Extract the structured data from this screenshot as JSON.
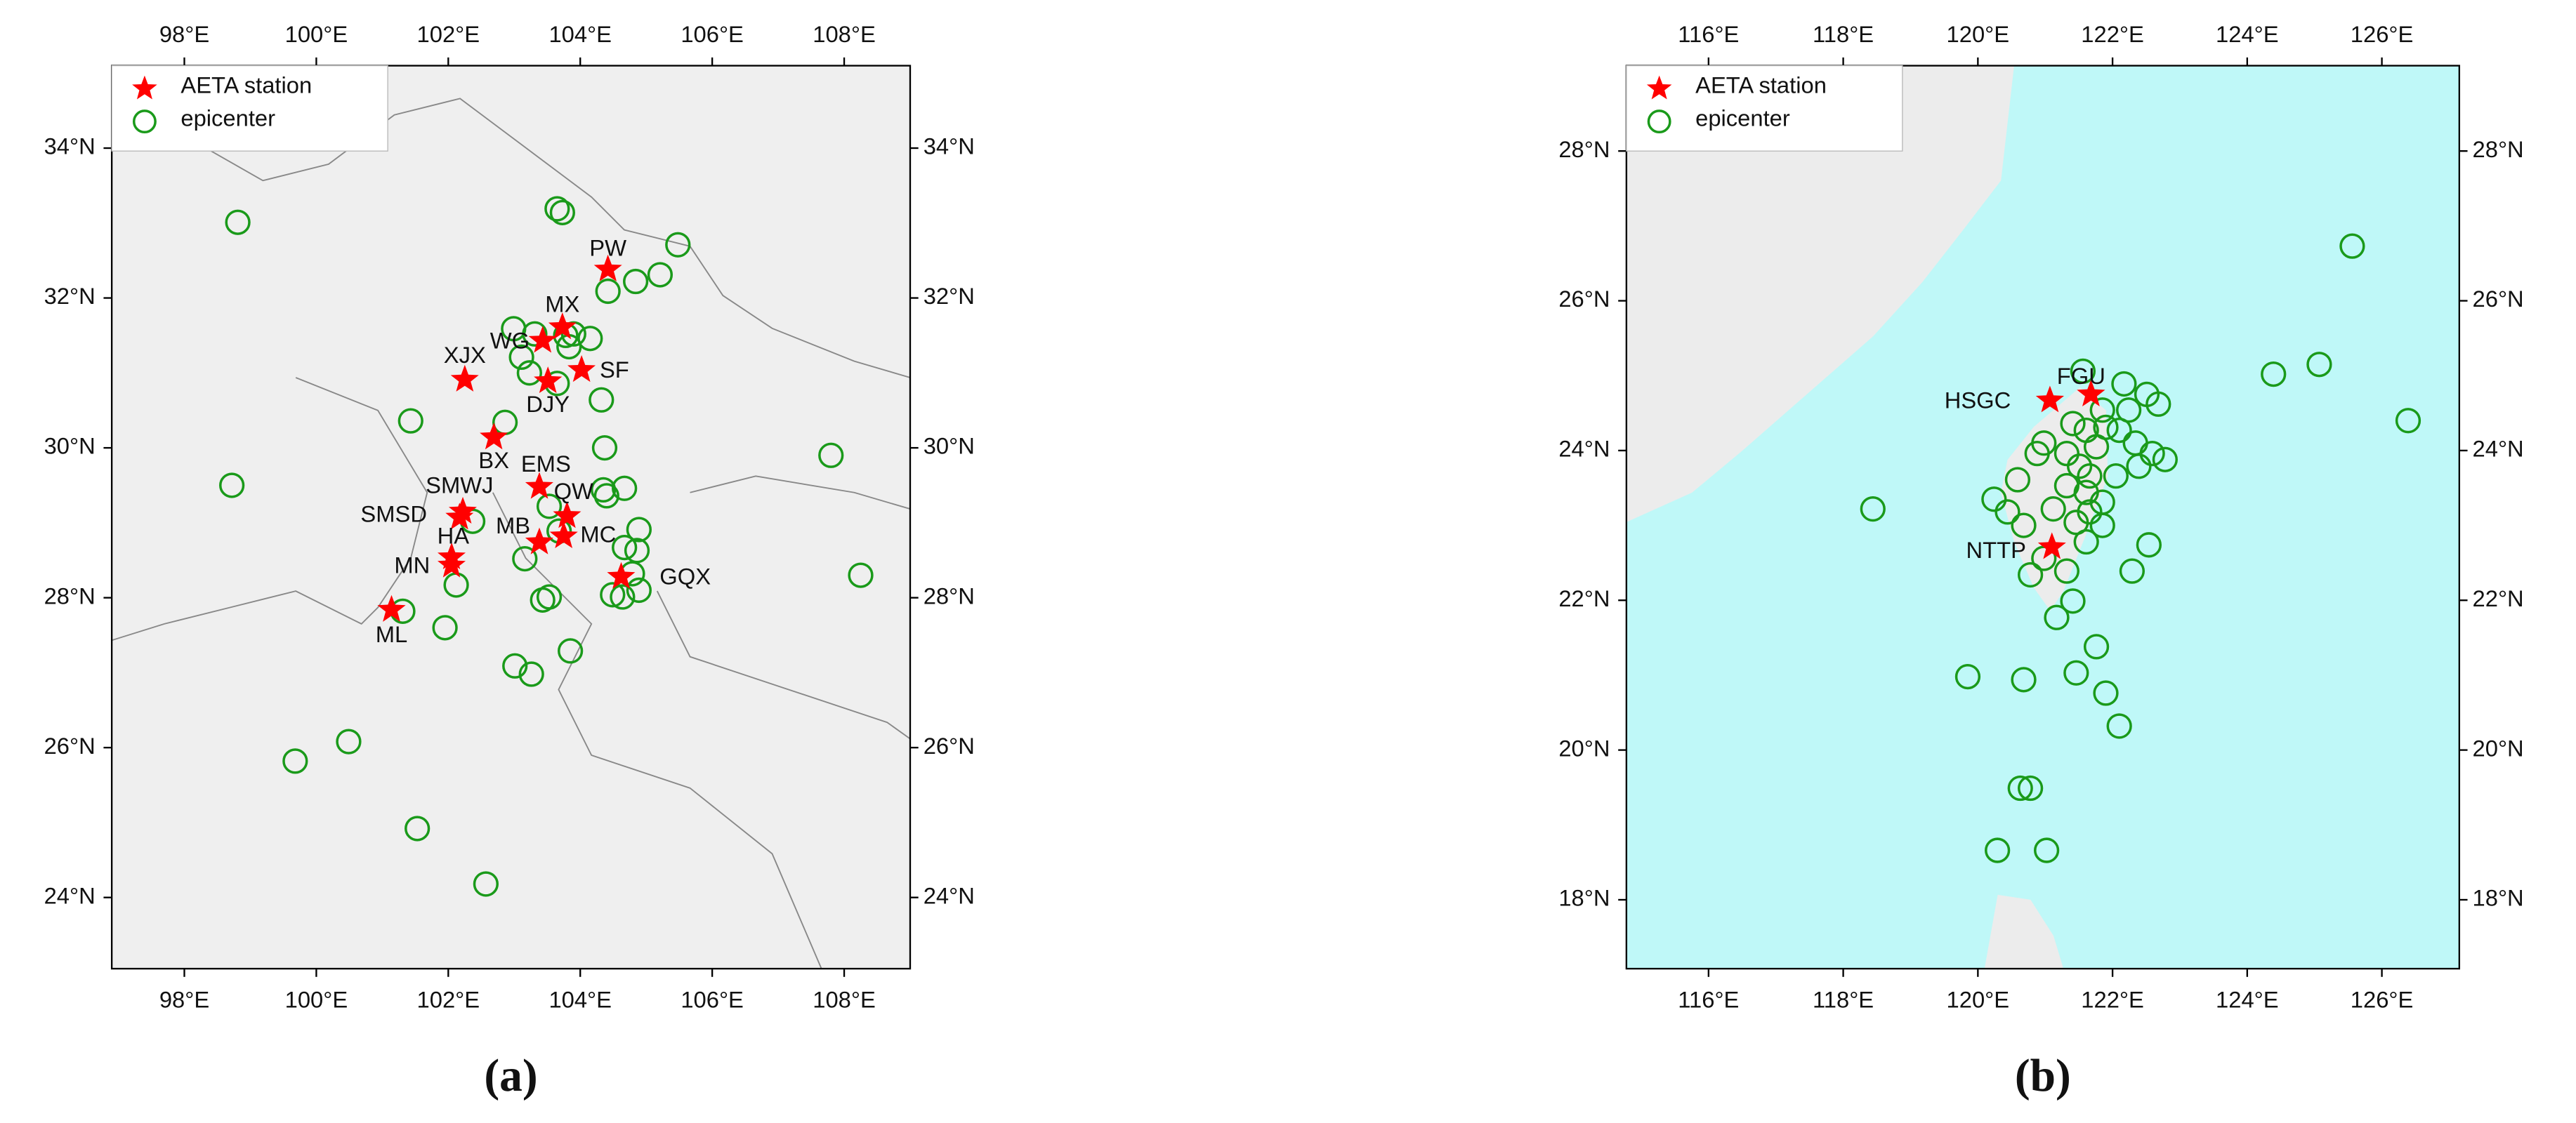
{
  "chart_data": [
    {
      "type": "scatter",
      "caption": "(a)",
      "background": "#efefef",
      "xlim": [
        96.9,
        109
      ],
      "ylim": [
        23.05,
        35.1
      ],
      "xticks": [
        {
          "value": 98,
          "label": "98°E"
        },
        {
          "value": 100,
          "label": "100°E"
        },
        {
          "value": 102,
          "label": "102°E"
        },
        {
          "value": 104,
          "label": "104°E"
        },
        {
          "value": 106,
          "label": "106°E"
        },
        {
          "value": 108,
          "label": "108°E"
        }
      ],
      "yticks": [
        {
          "value": 24,
          "label": "24°N"
        },
        {
          "value": 26,
          "label": "26°N"
        },
        {
          "value": 28,
          "label": "28°N"
        },
        {
          "value": 30,
          "label": "30°N"
        },
        {
          "value": 32,
          "label": "32°N"
        },
        {
          "value": 34,
          "label": "34°N"
        }
      ],
      "series": [
        {
          "name": "AETA station",
          "color": "#ff0000",
          "marker": "star",
          "labels": [
            "PW",
            "MX",
            "WG",
            "XJX",
            "SF",
            "DJY",
            "BX",
            "EMS",
            "SMWJ",
            "SMSD",
            "QW",
            "MB",
            "MC",
            "HA",
            "MN",
            "GQX",
            "ML"
          ],
          "x": [
            104.42,
            103.73,
            103.43,
            102.25,
            104.02,
            103.51,
            102.69,
            103.38,
            102.22,
            102.17,
            103.8,
            103.38,
            103.75,
            102.05,
            102.05,
            104.62,
            101.14
          ],
          "y": [
            32.38,
            31.61,
            31.43,
            30.91,
            31.04,
            30.89,
            30.14,
            29.48,
            29.15,
            29.07,
            29.09,
            28.74,
            28.82,
            28.54,
            28.43,
            28.28,
            27.84
          ]
        },
        {
          "name": "epicenter",
          "color": "#1a9a1a",
          "marker": "circle",
          "x": [
            98.81,
            103.65,
            103.73,
            105.48,
            104.42,
            104.84,
            105.21,
            102.99,
            103.31,
            103.78,
            103.9,
            103.83,
            104.15,
            103.11,
            103.23,
            103.65,
            102.86,
            104.32,
            101.43,
            98.72,
            104.37,
            104.35,
            104.67,
            104.4,
            102.37,
            103.53,
            103.68,
            103.16,
            104.89,
            104.67,
            104.86,
            102.12,
            101.31,
            103.43,
            103.53,
            104.49,
            104.89,
            101.95,
            103.85,
            103.01,
            103.26,
            100.49,
            99.68,
            101.53,
            102.57,
            107.8,
            108.25,
            104.79,
            104.64
          ],
          "y": [
            33.01,
            33.19,
            33.14,
            32.71,
            32.09,
            32.22,
            32.31,
            31.59,
            31.52,
            31.5,
            31.52,
            31.35,
            31.46,
            31.21,
            31.0,
            30.86,
            30.34,
            30.64,
            30.36,
            29.5,
            30.0,
            29.44,
            29.46,
            29.36,
            29.02,
            29.22,
            28.89,
            28.52,
            28.91,
            28.67,
            28.63,
            28.17,
            27.82,
            27.97,
            28.01,
            28.04,
            28.1,
            27.6,
            27.29,
            27.09,
            26.98,
            26.08,
            25.82,
            24.92,
            24.18,
            29.9,
            28.3,
            28.32,
            28.01
          ]
        }
      ]
    },
    {
      "type": "scatter",
      "caption": "(b)",
      "background": "#bff8f8",
      "xlim": [
        114.78,
        127.15
      ],
      "ylim": [
        17.08,
        29.14
      ],
      "xticks": [
        {
          "value": 116,
          "label": "116°E"
        },
        {
          "value": 118,
          "label": "118°E"
        },
        {
          "value": 120,
          "label": "120°E"
        },
        {
          "value": 122,
          "label": "122°E"
        },
        {
          "value": 124,
          "label": "124°E"
        },
        {
          "value": 126,
          "label": "126°E"
        }
      ],
      "yticks": [
        {
          "value": 18,
          "label": "18°N"
        },
        {
          "value": 20,
          "label": "20°N"
        },
        {
          "value": 22,
          "label": "22°N"
        },
        {
          "value": 24,
          "label": "24°N"
        },
        {
          "value": 26,
          "label": "26°N"
        },
        {
          "value": 28,
          "label": "28°N"
        }
      ],
      "series": [
        {
          "name": "AETA station",
          "color": "#ff0000",
          "marker": "star",
          "labels": [
            "FGU",
            "HSGC",
            "NTTP"
          ],
          "x": [
            121.68,
            121.07,
            121.1
          ],
          "y": [
            24.75,
            24.67,
            22.71
          ]
        },
        {
          "name": "epicenter",
          "color": "#1a9a1a",
          "marker": "circle",
          "x": [
            125.56,
            125.07,
            124.39,
            126.39,
            121.56,
            122.17,
            122.51,
            122.68,
            121.85,
            121.41,
            122.1,
            122.34,
            121.76,
            122.59,
            122.78,
            121.51,
            122.05,
            122.39,
            121.61,
            121.85,
            121.46,
            122.54,
            122.29,
            121.61,
            121.32,
            121.41,
            121.17,
            121.76,
            121.46,
            121.9,
            122.1,
            120.68,
            119.85,
            118.44,
            120.63,
            120.78,
            120.29,
            121.02,
            120.24,
            120.44,
            120.59,
            120.88,
            120.98,
            120.68,
            120.98,
            120.78,
            121.12,
            121.32,
            121.66,
            121.66,
            121.85,
            121.9,
            121.61,
            122.24,
            121.32
          ],
          "y": [
            26.73,
            25.15,
            25.02,
            24.4,
            25.06,
            24.89,
            24.75,
            24.62,
            24.54,
            24.36,
            24.27,
            24.1,
            24.05,
            23.96,
            23.88,
            23.79,
            23.66,
            23.79,
            23.44,
            23.31,
            23.04,
            22.74,
            22.39,
            22.78,
            22.39,
            21.99,
            21.77,
            21.38,
            21.03,
            20.76,
            20.32,
            20.94,
            20.98,
            23.22,
            19.49,
            19.49,
            18.66,
            18.66,
            23.35,
            23.18,
            23.61,
            23.96,
            24.1,
            23.0,
            22.56,
            22.34,
            23.22,
            23.53,
            23.66,
            23.18,
            23.0,
            24.31,
            24.27,
            24.54,
            23.96
          ]
        }
      ]
    }
  ]
}
